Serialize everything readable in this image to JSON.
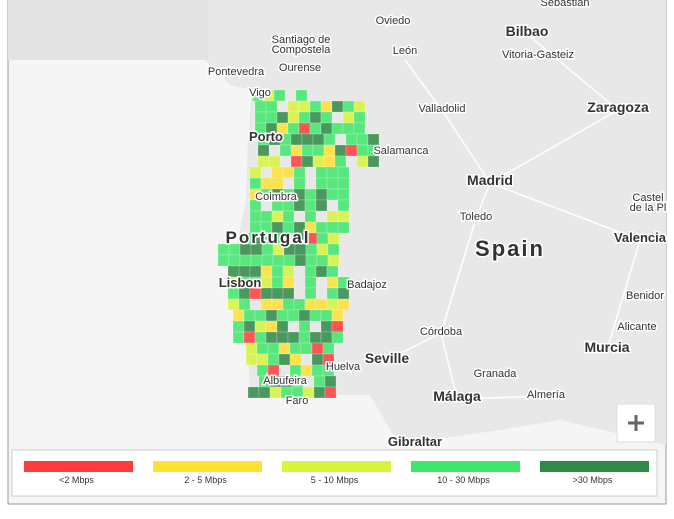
{
  "map": {
    "labels": [
      {
        "text": "Sebastian"
      },
      {
        "text": "Oviedo"
      },
      {
        "text": "Bilbao"
      },
      {
        "lines": [
          "Santiago de",
          "Compostela"
        ]
      },
      {
        "text": "León"
      },
      {
        "text": "Vitoria-Gasteiz"
      },
      {
        "text": "Pontevedra"
      },
      {
        "text": "Ourense"
      },
      {
        "text": "Vigo"
      },
      {
        "text": "Valladolid"
      },
      {
        "text": "Zaragoza"
      },
      {
        "text": "Porto"
      },
      {
        "text": "Salamanca"
      },
      {
        "text": "Madrid"
      },
      {
        "text": "Coimbra"
      },
      {
        "text": "Toledo"
      },
      {
        "text": "Spain"
      },
      {
        "lines": [
          "Castel",
          "de la Pl"
        ]
      },
      {
        "text": "Valencia"
      },
      {
        "text": "Portugal"
      },
      {
        "text": "Lisbon"
      },
      {
        "text": "Badajoz"
      },
      {
        "text": "Benidor"
      },
      {
        "text": "Córdoba"
      },
      {
        "text": "Alicante"
      },
      {
        "text": "Seville"
      },
      {
        "text": "Murcia"
      },
      {
        "text": "Huelva"
      },
      {
        "text": "Granada"
      },
      {
        "text": "Albufeira"
      },
      {
        "text": "Málaga"
      },
      {
        "text": "Almería"
      },
      {
        "text": "Faro"
      },
      {
        "text": "Gibraltar"
      }
    ]
  },
  "legend": [
    {
      "label": "<2 Mbps",
      "color": "#ff3b3b"
    },
    {
      "label": "2 - 5 Mbps",
      "color": "#ffe033"
    },
    {
      "label": "5 - 10 Mbps",
      "color": "#d6f53c"
    },
    {
      "label": "10 - 30 Mbps",
      "color": "#3ee66a"
    },
    {
      "label": ">30 Mbps",
      "color": "#2f8a47"
    }
  ]
}
